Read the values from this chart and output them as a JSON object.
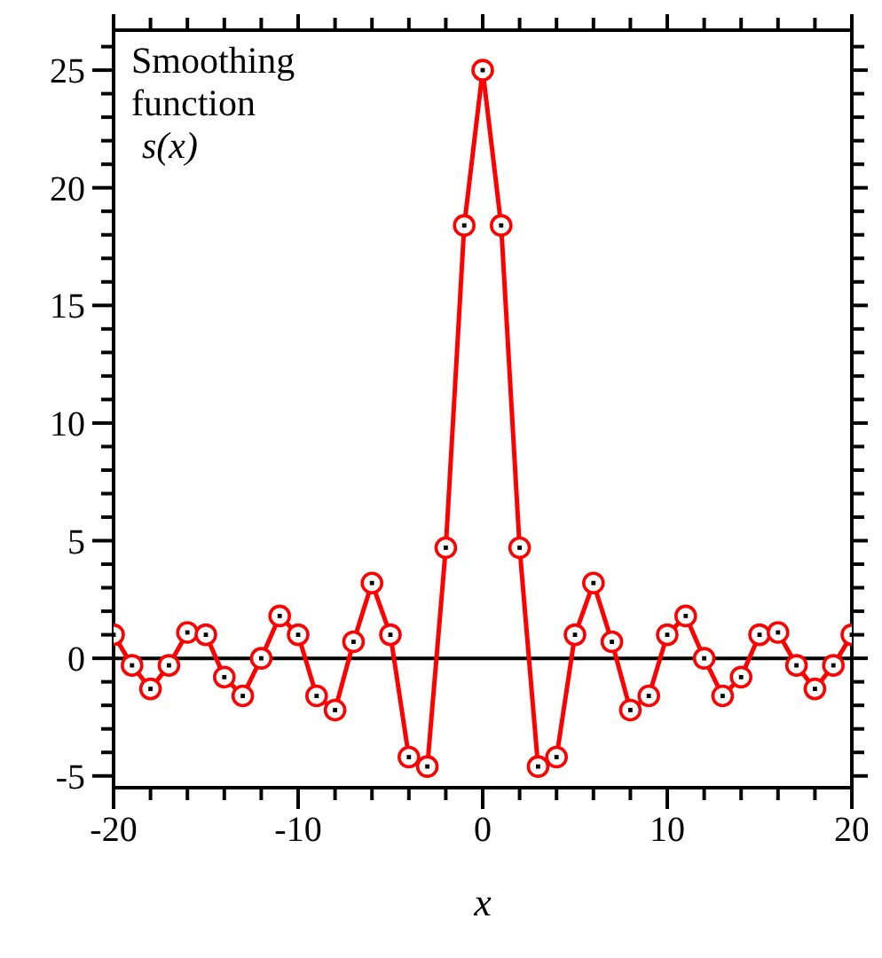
{
  "chart_data": {
    "type": "line",
    "title": "Smoothing function s(x)",
    "xlabel": "x",
    "x": [
      -20,
      -19,
      -18,
      -17,
      -16,
      -15,
      -14,
      -13,
      -12,
      -11,
      -10,
      -9,
      -8,
      -7,
      -6,
      -5,
      -4,
      -3,
      -2,
      -1,
      0,
      1,
      2,
      3,
      4,
      5,
      6,
      7,
      8,
      9,
      10,
      11,
      12,
      13,
      14,
      15,
      16,
      17,
      18,
      19,
      20
    ],
    "series": [
      {
        "color": "#ff0000",
        "values": [
          1.0,
          -0.3,
          -1.3,
          -0.3,
          1.1,
          1.0,
          -0.8,
          -1.6,
          0,
          1.8,
          1.0,
          -1.6,
          -2.2,
          0.7,
          3.2,
          1.0,
          -4.2,
          -4.6,
          4.7,
          18.4,
          25,
          18.4,
          4.7,
          -4.6,
          -4.2,
          1.0,
          3.2,
          0.7,
          -2.2,
          -1.6,
          1.0,
          1.8,
          0,
          -1.6,
          -0.8,
          1.0,
          1.1,
          -0.3,
          -1.3,
          -0.3,
          1.0
        ]
      }
    ],
    "xlim": [
      -20,
      20
    ],
    "xticks": [
      -20,
      {
        "value": -18,
        "label": null
      },
      {
        "value": -16,
        "label": null
      },
      {
        "value": -14,
        "label": null
      },
      {
        "value": -12,
        "label": null
      },
      -10,
      {
        "value": -8,
        "label": null
      },
      {
        "value": -6,
        "label": null
      },
      {
        "value": -4,
        "label": null
      },
      {
        "value": -2,
        "label": null
      },
      0,
      {
        "value": 2,
        "label": null
      },
      {
        "value": 4,
        "label": null
      },
      {
        "value": 6,
        "label": null
      },
      {
        "value": 8,
        "label": null
      },
      10,
      {
        "value": 12,
        "label": null
      },
      {
        "value": 14,
        "label": null
      },
      {
        "value": 16,
        "label": null
      },
      {
        "value": 18,
        "label": null
      },
      20
    ],
    "ylim": [
      -5.5,
      26.7
    ],
    "yticks": [
      {
        "value": -5,
        "label": "-5"
      },
      {
        "value": -4,
        "label": null
      },
      {
        "value": -3,
        "label": null
      },
      {
        "value": -2,
        "label": null
      },
      {
        "value": -1,
        "label": null
      },
      0,
      {
        "value": 1,
        "label": null
      },
      {
        "value": 2,
        "label": null
      },
      {
        "value": 3,
        "label": null
      },
      {
        "value": 4,
        "label": null
      },
      5,
      {
        "value": 6,
        "label": null
      },
      {
        "value": 7,
        "label": null
      },
      {
        "value": 8,
        "label": null
      },
      {
        "value": 9,
        "label": null
      },
      10,
      {
        "value": 11,
        "label": null
      },
      {
        "value": 12,
        "label": null
      },
      {
        "value": 13,
        "label": null
      },
      {
        "value": 14,
        "label": null
      },
      15,
      {
        "value": 16,
        "label": null
      },
      {
        "value": 17,
        "label": null
      },
      {
        "value": 18,
        "label": null
      },
      {
        "value": 19,
        "label": null
      },
      20,
      {
        "value": 21,
        "label": null
      },
      {
        "value": 22,
        "label": null
      },
      {
        "value": 23,
        "label": null
      },
      {
        "value": 24,
        "label": null
      },
      25,
      {
        "value": 26,
        "label": null
      }
    ],
    "ref_lines": [
      {
        "axis": "y",
        "value": 0,
        "color": "#000000"
      }
    ],
    "grid": false,
    "legend": false,
    "marker": "circle",
    "line_style": "solid"
  }
}
